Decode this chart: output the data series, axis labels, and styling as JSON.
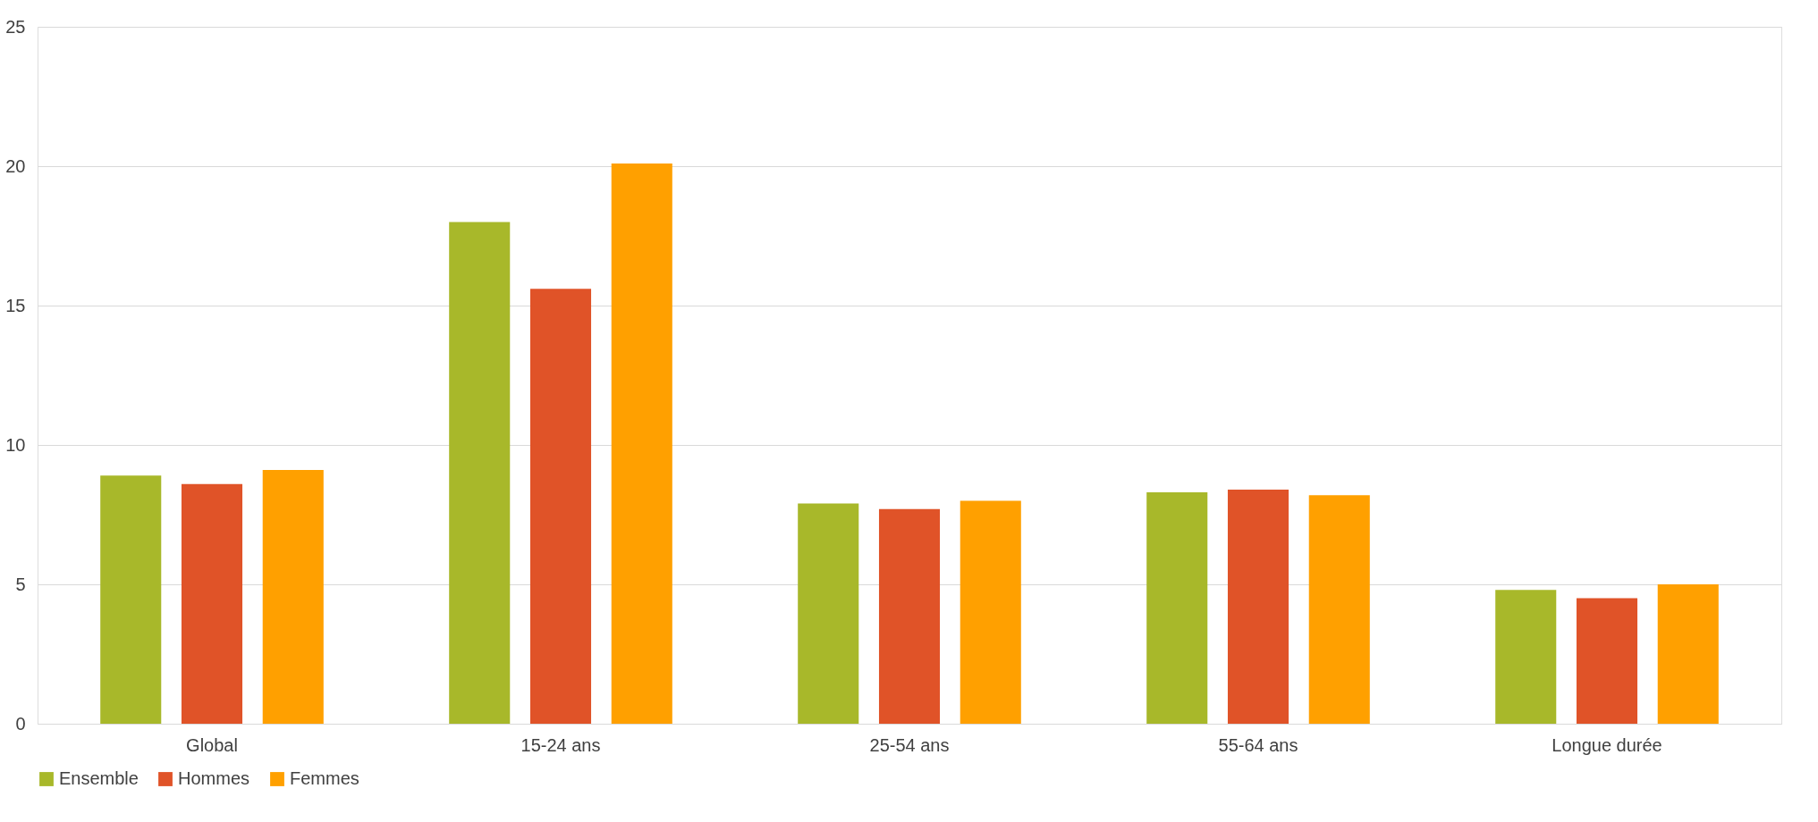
{
  "chart_data": {
    "type": "bar",
    "categories": [
      "Global",
      "15-24 ans",
      "25-54 ans",
      "55-64 ans",
      "Longue durée"
    ],
    "series": [
      {
        "name": "Ensemble",
        "color": "#a8b82a",
        "values": [
          8.9,
          18.0,
          7.9,
          8.3,
          4.8
        ]
      },
      {
        "name": "Hommes",
        "color": "#e05328",
        "values": [
          8.6,
          15.6,
          7.7,
          8.4,
          4.5
        ]
      },
      {
        "name": "Femmes",
        "color": "#ffa000",
        "values": [
          9.1,
          20.1,
          8.0,
          8.2,
          5.0
        ]
      }
    ],
    "ylim": [
      0,
      25
    ],
    "yticks": [
      0,
      5,
      10,
      15,
      20,
      25
    ],
    "grid": "y",
    "legend": "bottom"
  }
}
